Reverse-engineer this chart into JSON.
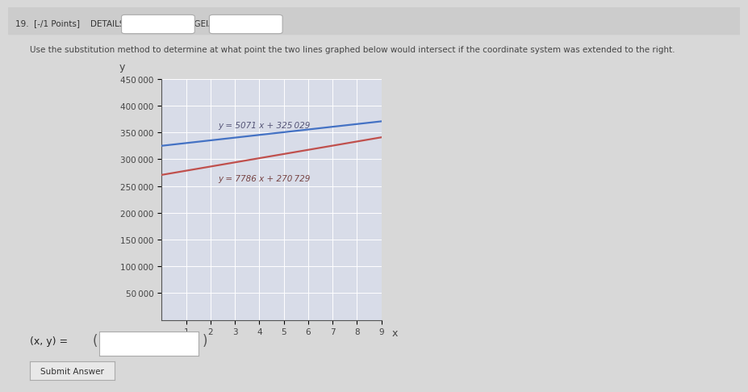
{
  "line1_slope": 5071,
  "line1_intercept": 325029,
  "line1_color": "#4472C4",
  "line2_slope": 7786,
  "line2_intercept": 270729,
  "line2_color": "#C0504D",
  "x_min": 0,
  "x_max": 9,
  "y_min": 0,
  "y_max": 450000,
  "y_ticks": [
    50000,
    100000,
    150000,
    200000,
    250000,
    300000,
    350000,
    400000,
    450000
  ],
  "x_ticks": [
    1,
    2,
    3,
    4,
    5,
    6,
    7,
    8,
    9
  ],
  "xlabel": "x",
  "ylabel": "y",
  "page_bg": "#d8d8d8",
  "card_bg": "#f0f0f0",
  "plot_bg": "#d8dce8",
  "grid_color": "#ffffff",
  "header_text": "19.  [-/1 Points]    DETAILS    MY NOTES    TGEIALG6 4.2.084.",
  "title_text": "Use the substitution method to determine at what point the two lines graphed below would intersect if the coordinate system was extended to the right.",
  "line1_annotation": "y = 5071 x + 325 029",
  "line2_annotation": "y = 7786 x + 270 729",
  "footer_label": "(x, y) =",
  "submit_text": "Submit Answer"
}
